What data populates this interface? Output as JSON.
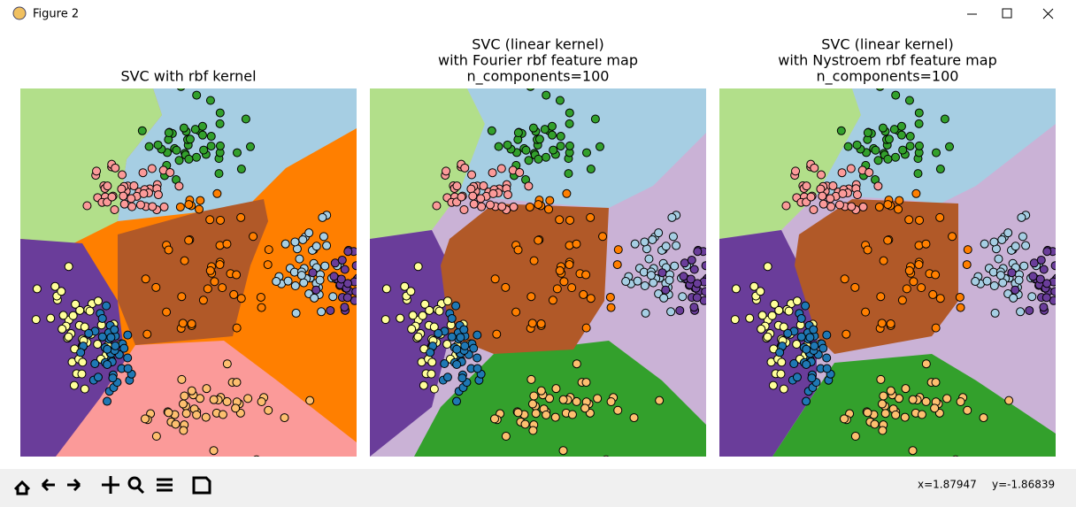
{
  "window": {
    "title": "Figure 2"
  },
  "subplots": [
    {
      "title": [
        "SVC with rbf kernel"
      ]
    },
    {
      "title": [
        "SVC (linear kernel)",
        "with Fourier rbf feature map",
        "n_components=100"
      ]
    },
    {
      "title": [
        "SVC (linear kernel)",
        "with Nystroem rbf feature map",
        "n_components=100"
      ]
    }
  ],
  "status": {
    "x": "x=1.87947",
    "y": "y=-1.86839"
  }
}
